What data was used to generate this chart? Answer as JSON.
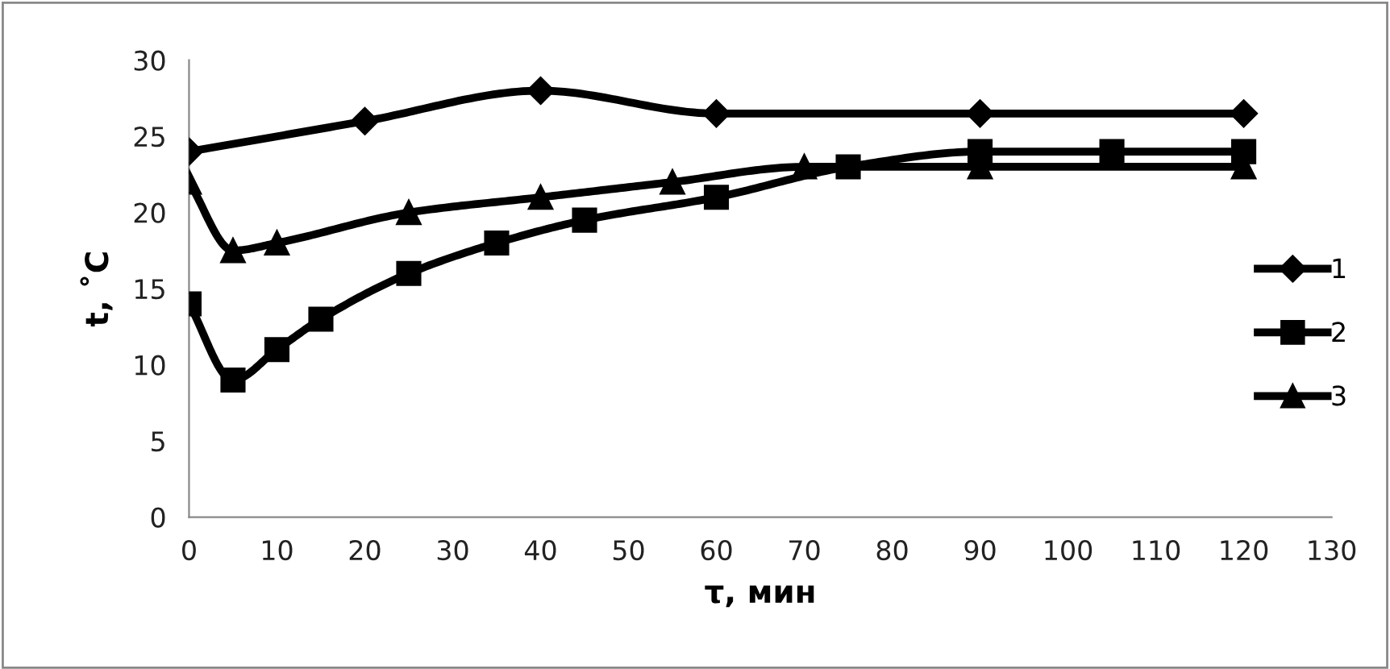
{
  "chart_data": {
    "type": "line",
    "xlabel": "τ, мин",
    "ylabel": "t, ˚C",
    "xlim": [
      0,
      130
    ],
    "xticks": [
      0,
      10,
      20,
      30,
      40,
      50,
      60,
      70,
      80,
      90,
      100,
      110,
      120,
      130
    ],
    "ylim": [
      0,
      30
    ],
    "yticks": [
      0,
      5,
      10,
      15,
      20,
      25,
      30
    ],
    "grid": false,
    "legend": "right",
    "line_style": "solid",
    "series": [
      {
        "name": "1",
        "color": "#000000",
        "marker": "diamond",
        "x": [
          0,
          20,
          40,
          60,
          90,
          120
        ],
        "values": [
          24,
          26,
          28,
          26.5,
          26.5,
          26.5
        ]
      },
      {
        "name": "2",
        "color": "#000000",
        "marker": "square",
        "x": [
          0,
          5,
          10,
          15,
          25,
          35,
          45,
          60,
          75,
          90,
          105,
          120
        ],
        "values": [
          14,
          9,
          11,
          13,
          16,
          18,
          19.5,
          21,
          23,
          24,
          24,
          24
        ]
      },
      {
        "name": "3",
        "color": "#000000",
        "marker": "triangle",
        "x": [
          0,
          5,
          10,
          25,
          40,
          55,
          70,
          90,
          120
        ],
        "values": [
          22,
          17.5,
          18,
          20,
          21,
          22,
          23,
          23,
          23
        ]
      }
    ]
  }
}
